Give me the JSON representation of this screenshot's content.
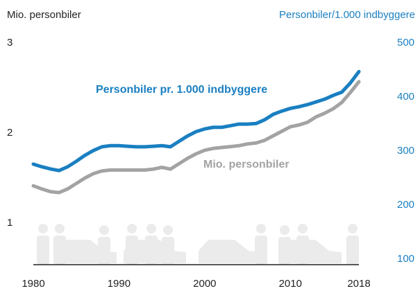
{
  "chart_data": {
    "type": "line",
    "ylabel": "Mio. personbiler",
    "y2label": "Personbiler/1.000 indbyggere",
    "xlim": [
      1980,
      2018
    ],
    "xticks": [
      1980,
      1990,
      2000,
      2010,
      2018
    ],
    "ylim": [
      0.54,
      3
    ],
    "yticks": [
      1,
      2,
      3
    ],
    "y2lim": [
      90,
      500
    ],
    "y2ticks": [
      100,
      200,
      300,
      400,
      500
    ],
    "x": [
      1980,
      1981,
      1982,
      1983,
      1984,
      1985,
      1986,
      1987,
      1988,
      1989,
      1990,
      1991,
      1992,
      1993,
      1994,
      1995,
      1996,
      1997,
      1998,
      1999,
      2000,
      2001,
      2002,
      2003,
      2004,
      2005,
      2006,
      2007,
      2008,
      2009,
      2010,
      2011,
      2012,
      2013,
      2014,
      2015,
      2016,
      2017,
      2018
    ],
    "series": [
      {
        "name": "Mio. personbiler",
        "color": "#a3a3a3",
        "values": [
          1.415,
          1.38,
          1.35,
          1.34,
          1.38,
          1.44,
          1.5,
          1.55,
          1.58,
          1.59,
          1.59,
          1.59,
          1.59,
          1.59,
          1.6,
          1.62,
          1.6,
          1.66,
          1.72,
          1.77,
          1.81,
          1.83,
          1.84,
          1.85,
          1.86,
          1.88,
          1.89,
          1.92,
          1.97,
          2.02,
          2.07,
          2.09,
          2.12,
          2.18,
          2.22,
          2.27,
          2.34,
          2.45,
          2.57
        ]
      },
      {
        "name": "Personbiler pr. 1.000 indbyggere",
        "color": "#1a7fc1",
        "axis": "y2",
        "values": [
          276,
          271,
          267,
          264,
          271,
          281,
          292,
          301,
          308,
          310,
          310,
          309,
          308,
          308,
          309,
          310,
          308,
          318,
          328,
          336,
          341,
          344,
          344,
          347,
          350,
          350,
          351,
          358,
          368,
          374,
          379,
          382,
          386,
          391,
          396,
          403,
          409,
          426,
          447
        ]
      }
    ]
  }
}
